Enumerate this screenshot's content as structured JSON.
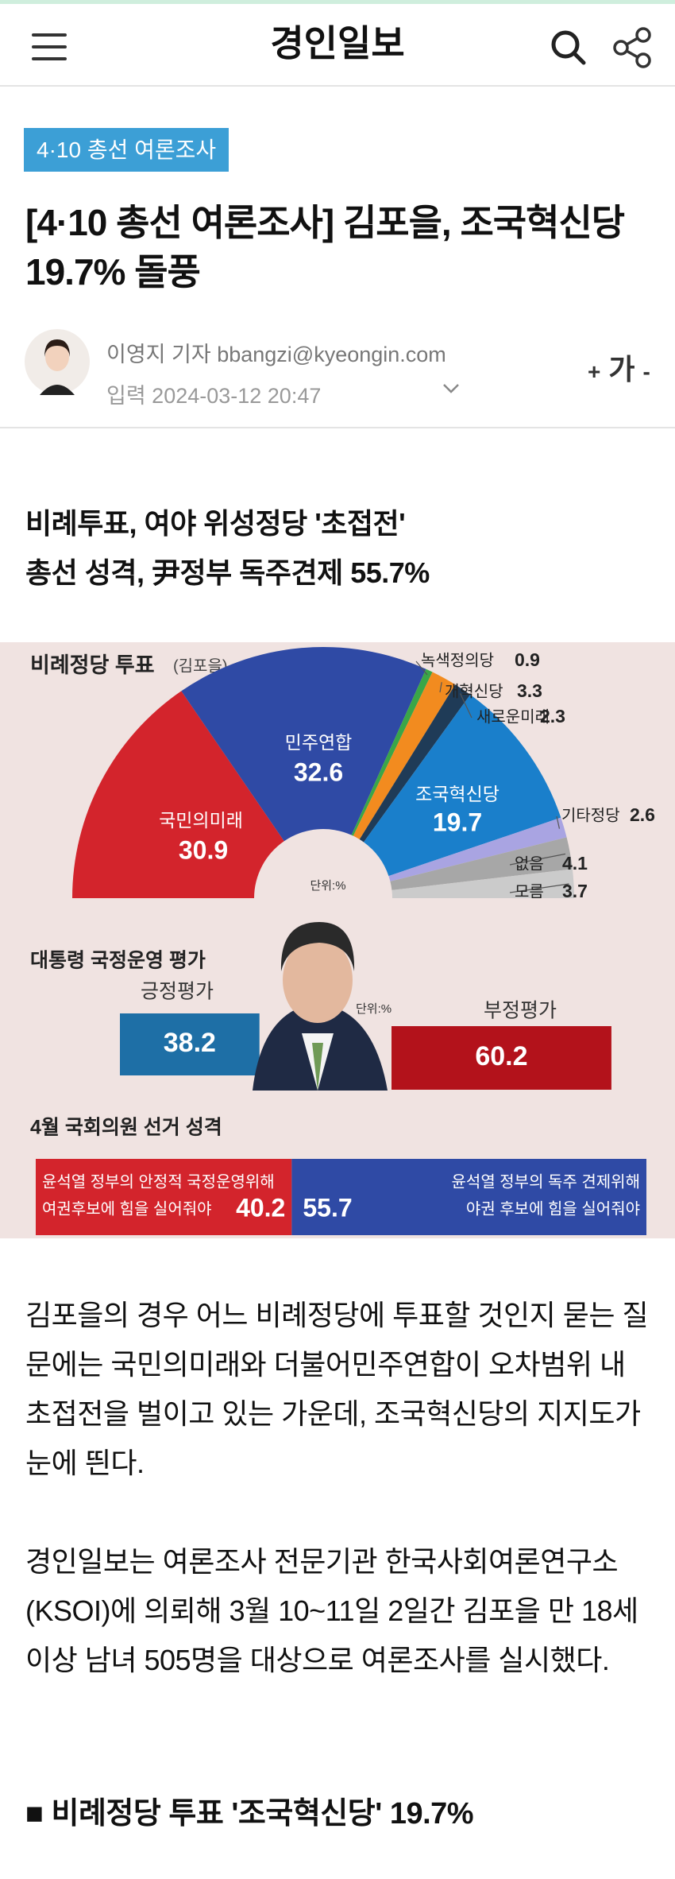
{
  "header": {
    "logo": "경인일보"
  },
  "article": {
    "tag": "4·10 총선 여론조사",
    "title_lines": [
      "[4·10 총선 여론조사] 김포을, 조국혁신당",
      "19.7% 돌풍"
    ],
    "author": "이영지 기자 bbangzi@kyeongin.com",
    "date": "입력 2024-03-12 20:47",
    "font_control": {
      "plus": "+",
      "label": "가",
      "minus": "-"
    },
    "subtitle_lines": [
      "비례투표, 여야 위성정당 '초접전'",
      "총선 성격, 尹정부 독주견제 55.7%"
    ],
    "paragraphs": [
      "김포을의 경우 어느 비례정당에 투표할 것인지 묻는 질문에는 국민의미래와 더불어민주연합이 오차범위 내 초접전을 벌이고 있는 가운데, 조국혁신당의 지지도가 눈에 띈다.",
      "경인일보는 여론조사 전문기관 한국사회여론연구소(KSOI)에 의뢰해 3월 10~11일 2일간 김포을 만 18세 이상 남녀 505명을 대상으로 여론조사를 실시했다."
    ],
    "section_heading": "■ 비례정당 투표 '조국혁신당' 19.7%"
  },
  "infographic": {
    "party_vote": {
      "title": "비례정당 투표",
      "region": "(김포을)",
      "unit": "단위:%",
      "parties": [
        {
          "name": "국민의미래",
          "value": 30.9,
          "color": "#d3242c"
        },
        {
          "name": "민주연합",
          "value": 32.6,
          "color": "#2f4aa5"
        },
        {
          "name": "녹색정의당",
          "value": 0.9,
          "color": "#3aa648"
        },
        {
          "name": "개혁신당",
          "value": 3.3,
          "color": "#f28b1f"
        },
        {
          "name": "새로운미래",
          "value": 2.3,
          "color": "#1f3b57"
        },
        {
          "name": "조국혁신당",
          "value": 19.7,
          "color": "#1a7fcb"
        },
        {
          "name": "기타정당",
          "value": 2.6,
          "color": "#a9a4e2"
        },
        {
          "name": "없음",
          "value": 4.1,
          "color": "#a7a7a7"
        },
        {
          "name": "모름",
          "value": 3.7,
          "color": "#cbcbcb"
        }
      ]
    },
    "approval": {
      "title": "대통령 국정운영 평가",
      "unit": "단위:%",
      "items": [
        {
          "name": "긍정평가",
          "value": 38.2,
          "color": "#1e6fa6"
        },
        {
          "name": "부정평가",
          "value": 60.2,
          "color": "#b3121b"
        }
      ]
    },
    "election": {
      "title": "4월 국회의원 선거 성격",
      "items": [
        {
          "lines": [
            "윤석열 정부의 안정적 국정운영위해",
            "여권후보에 힘을 실어줘야"
          ],
          "value": 40.2,
          "color": "#d3242c"
        },
        {
          "lines": [
            "윤석열 정부의 독주 견제위해",
            "야권 후보에 힘을 실어줘야"
          ],
          "value": 55.7,
          "color": "#2f4aa5"
        }
      ]
    }
  }
}
